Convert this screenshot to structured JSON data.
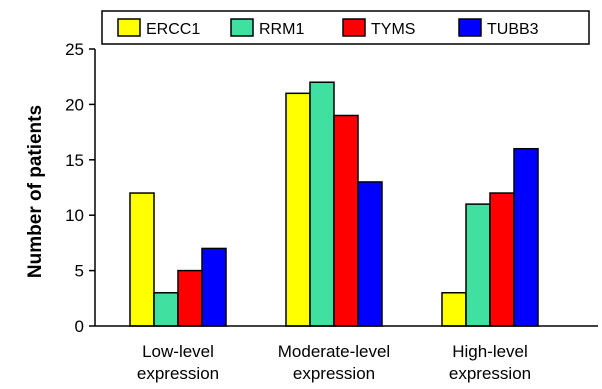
{
  "chart_data": {
    "type": "bar",
    "categories": [
      [
        "Low-level",
        "expression"
      ],
      [
        "Moderate-level",
        "expression"
      ],
      [
        "High-level",
        "expression"
      ]
    ],
    "series": [
      {
        "name": "ERCC1",
        "color": "#ffff00",
        "values": [
          12,
          21,
          3
        ]
      },
      {
        "name": "RRM1",
        "color": "#40e0a0",
        "values": [
          3,
          22,
          11
        ]
      },
      {
        "name": "TYMS",
        "color": "#ff0000",
        "values": [
          5,
          19,
          12
        ]
      },
      {
        "name": "TUBB3",
        "color": "#0000ff",
        "values": [
          7,
          13,
          16
        ]
      }
    ],
    "ylabel": "Number of patients",
    "xlabel": "",
    "ylim": [
      0,
      25
    ],
    "yticks": [
      0,
      5,
      10,
      15,
      20,
      25
    ],
    "legend_position": "top",
    "grid": false
  }
}
